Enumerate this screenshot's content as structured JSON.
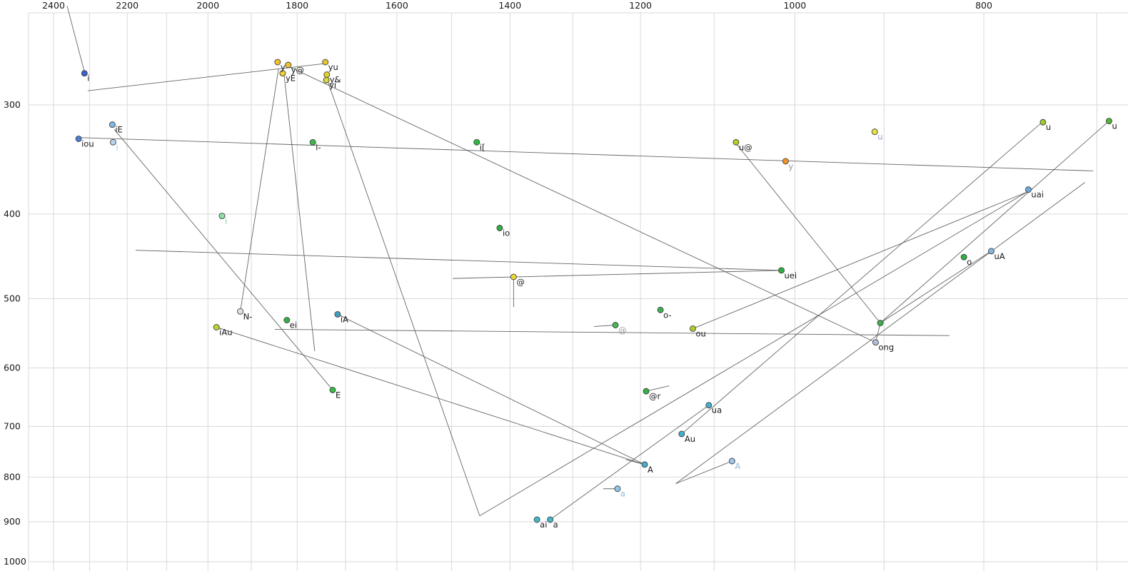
{
  "chart_data": {
    "type": "scatter",
    "title": "",
    "description": "F1/F2 vowel formant plot, log-scaled reversed axes, trajectory lines between vowel targets",
    "x_axis": {
      "unit": "Hz",
      "scale": "log",
      "reversed": true,
      "range": [
        2450,
        690
      ],
      "grid": [
        2400,
        2300,
        2200,
        2100,
        2000,
        1900,
        1800,
        1700,
        1600,
        1500,
        1400,
        1300,
        1200,
        1100,
        1000,
        900,
        800,
        700
      ],
      "label_ticks": [
        2400,
        2200,
        2000,
        1800,
        1600,
        1400,
        1200,
        1000,
        800
      ]
    },
    "y_axis": {
      "unit": "Hz",
      "scale": "log",
      "reversed": false,
      "range": [
        225,
        1030
      ],
      "grid": [
        300,
        400,
        500,
        600,
        700,
        800,
        900,
        1000
      ],
      "label_ticks": [
        300,
        400,
        500,
        600,
        700,
        800,
        900,
        1000
      ]
    },
    "grid_on": true,
    "colors": {
      "grid": "#d9d9d9",
      "line": "#555555",
      "tick_text": "#1a1a1a",
      "point_stroke": "#404040",
      "default_label": "#1a1a1a"
    },
    "points": [
      {
        "label": "i",
        "f2": 2314,
        "f1": 276,
        "color": "#3a62c8"
      },
      {
        "label": "iE",
        "f2": 2239,
        "f1": 316,
        "color": "#7fb8e8"
      },
      {
        "label": "iou",
        "f2": 2330,
        "f1": 328,
        "color": "#4a7fd4"
      },
      {
        "label": "i",
        "f2": 2237,
        "f1": 331,
        "color": "#b8d4f0",
        "label_color": "#a9c6e8"
      },
      {
        "label": "y",
        "f2": 1842,
        "f1": 268,
        "color": "#f2c12e"
      },
      {
        "label": "y@",
        "f2": 1819,
        "f1": 270,
        "color": "#f2c12e"
      },
      {
        "label": "yE",
        "f2": 1831,
        "f1": 276,
        "color": "#f0d030"
      },
      {
        "label": "yu",
        "f2": 1741,
        "f1": 268,
        "color": "#e8c52c"
      },
      {
        "label": "y&",
        "f2": 1738,
        "f1": 277,
        "color": "#ded22e"
      },
      {
        "label": "yi",
        "f2": 1739,
        "f1": 281,
        "color": "#d8d838"
      },
      {
        "label": "i-",
        "f2": 1767,
        "f1": 331,
        "color": "#3dbb4a"
      },
      {
        "label": "i[",
        "f2": 1456,
        "f1": 331,
        "color": "#2eb93e"
      },
      {
        "label": "u@",
        "f2": 1072,
        "f1": 331,
        "color": "#b5cc28"
      },
      {
        "label": "y",
        "f2": 1011,
        "f1": 348,
        "color": "#f59527",
        "label_color": "#9a9a9a"
      },
      {
        "label": "u",
        "f2": 910,
        "f1": 322,
        "color": "#e8e43c",
        "label_color": "#a79ad0"
      },
      {
        "label": "u",
        "f2": 746,
        "f1": 314,
        "color": "#9ccb30"
      },
      {
        "label": "u",
        "f2": 690,
        "f1": 313,
        "color": "#52b832"
      },
      {
        "label": "uai",
        "f2": 759,
        "f1": 375,
        "color": "#6fa8dc"
      },
      {
        "label": "i",
        "f2": 1967,
        "f1": 402,
        "color": "#8fe0a8",
        "label_color": "#7fc89a"
      },
      {
        "label": "io",
        "f2": 1417,
        "f1": 415,
        "color": "#2fae42"
      },
      {
        "label": "@",
        "f2": 1394,
        "f1": 472,
        "color": "#ecd92f"
      },
      {
        "label": "uei",
        "f2": 1016,
        "f1": 464,
        "color": "#2fae42"
      },
      {
        "label": "o",
        "f2": 819,
        "f1": 448,
        "color": "#2fae42"
      },
      {
        "label": "uA",
        "f2": 793,
        "f1": 441,
        "color": "#85b6e0"
      },
      {
        "label": "o-",
        "f2": 1172,
        "f1": 515,
        "color": "#3bb44c"
      },
      {
        "label": "N-",
        "f2": 1925,
        "f1": 517,
        "color": "#e0e0ea"
      },
      {
        "label": "ei",
        "f2": 1822,
        "f1": 529,
        "color": "#35b045"
      },
      {
        "label": "iA",
        "f2": 1716,
        "f1": 521,
        "color": "#3f9fc0"
      },
      {
        "label": "iAu",
        "f2": 1980,
        "f1": 539,
        "color": "#bfd22e"
      },
      {
        "label": "@",
        "f2": 1236,
        "f1": 536,
        "color": "#45b858",
        "label_color": "#9a9aa0"
      },
      {
        "label": "ou",
        "f2": 1128,
        "f1": 541,
        "color": "#aecb2a"
      },
      {
        "label": "",
        "f2": 904,
        "f1": 533,
        "color": "#3bb04a"
      },
      {
        "label": "ong",
        "f2": 909,
        "f1": 561,
        "color": "#aebede"
      },
      {
        "label": "E",
        "f2": 1726,
        "f1": 636,
        "color": "#35bb45"
      },
      {
        "label": "@r",
        "f2": 1192,
        "f1": 638,
        "color": "#35b045"
      },
      {
        "label": "ua",
        "f2": 1107,
        "f1": 662,
        "color": "#46aecb"
      },
      {
        "label": "Au",
        "f2": 1143,
        "f1": 714,
        "color": "#46aecb"
      },
      {
        "label": "A",
        "f2": 1194,
        "f1": 774,
        "color": "#46aecb"
      },
      {
        "label": "A",
        "f2": 1077,
        "f1": 767,
        "color": "#9cc8ee",
        "label_color": "#9ab8d8"
      },
      {
        "label": "a",
        "f2": 1233,
        "f1": 825,
        "color": "#8ec8ea",
        "label_color": "#8ab8d8"
      },
      {
        "label": "ai",
        "f2": 1356,
        "f1": 895,
        "color": "#3fb9c9"
      },
      {
        "label": "a",
        "f2": 1335,
        "f1": 895,
        "color": "#3fb9c9"
      }
    ],
    "segments": [
      {
        "from": [
          2362,
          231
        ],
        "to": [
          2314,
          275
        ]
      },
      {
        "from": [
          2305,
          289
        ],
        "to": [
          1742,
          269
        ]
      },
      {
        "from": [
          2324,
          327
        ],
        "to": [
          703,
          357
        ]
      },
      {
        "from": [
          2234,
          320
        ],
        "to": [
          1726,
          636
        ]
      },
      {
        "from": [
          1840,
          273
        ],
        "to": [
          1925,
          517
        ]
      },
      {
        "from": [
          1828,
          277
        ],
        "to": [
          1763,
          574
        ]
      },
      {
        "from": [
          1739,
          279
        ],
        "to": [
          1451,
          886
        ]
      },
      {
        "from": [
          755,
          374
        ],
        "to": [
          1451,
          886
        ]
      },
      {
        "from": [
          1151,
          814
        ],
        "to": [
          710,
          368
        ]
      },
      {
        "from": [
          904,
          533
        ],
        "to": [
          793,
          441
        ]
      },
      {
        "from": [
          1072,
          332
        ],
        "to": [
          904,
          533
        ]
      },
      {
        "from": [
          1498,
          474
        ],
        "to": [
          1016,
          464
        ]
      },
      {
        "from": [
          1128,
          541
        ],
        "to": [
          757,
          376
        ]
      },
      {
        "from": [
          1980,
          539
        ],
        "to": [
          1194,
          774
        ]
      },
      {
        "from": [
          1716,
          521
        ],
        "to": [
          1194,
          774
        ]
      },
      {
        "from": [
          1107,
          662
        ],
        "to": [
          1335,
          895
        ]
      },
      {
        "from": [
          1143,
          714
        ],
        "to": [
          748,
          315
        ]
      },
      {
        "from": [
          690,
          313
        ],
        "to": [
          904,
          533
        ]
      },
      {
        "from": [
          2178,
          440
        ],
        "to": [
          1016,
          464
        ]
      },
      {
        "from": [
          1848,
          542
        ],
        "to": [
          833,
          551
        ]
      },
      {
        "from": [
          1819,
          271
        ],
        "to": [
          909,
          561
        ]
      },
      {
        "from": [
          1394,
          474
        ],
        "to": [
          1394,
          511
        ]
      },
      {
        "from": [
          1192,
          638
        ],
        "to": [
          1160,
          629
        ]
      },
      {
        "from": [
          1221,
          764
        ],
        "to": [
          1194,
          774
        ]
      },
      {
        "from": [
          1254,
          825
        ],
        "to": [
          1237,
          825
        ]
      },
      {
        "from": [
          1077,
          767
        ],
        "to": [
          1151,
          814
        ]
      },
      {
        "from": [
          1268,
          538
        ],
        "to": [
          1236,
          536
        ]
      },
      {
        "from": [
          904,
          533
        ],
        "to": [
          909,
          561
        ]
      }
    ]
  }
}
